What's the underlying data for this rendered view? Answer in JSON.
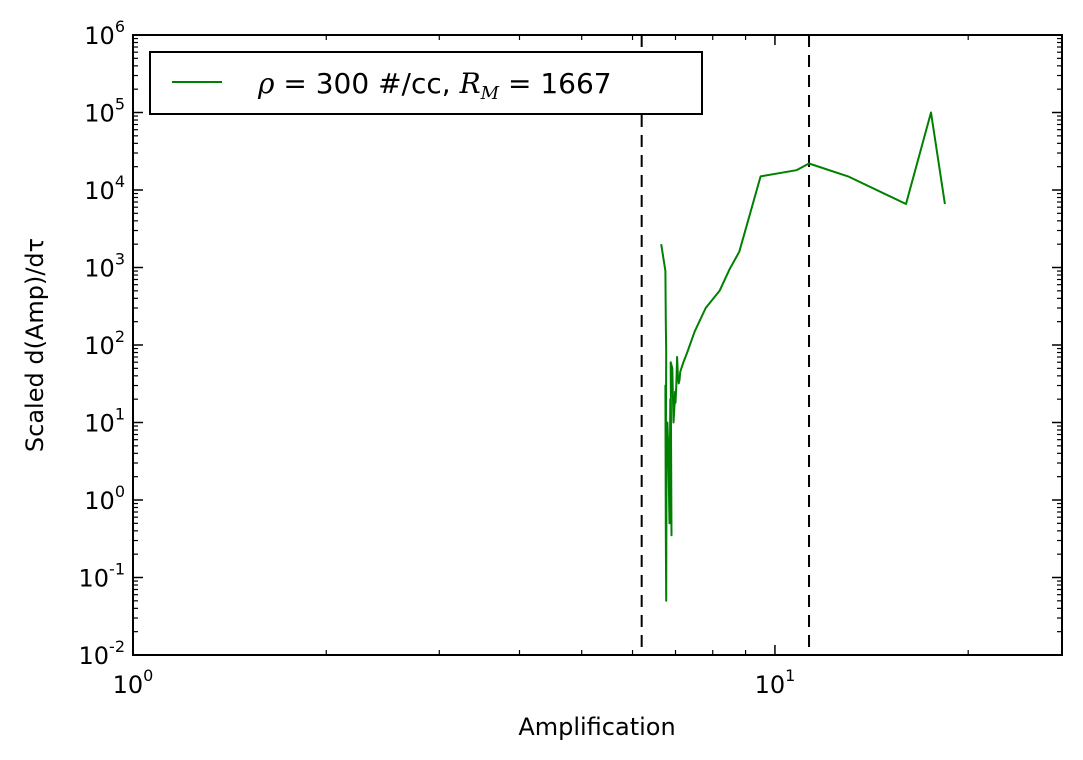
{
  "chart_data": {
    "type": "line",
    "xlabel": "Amplification",
    "ylabel": "Scaled d(Amp)/dτ",
    "x_scale": "log",
    "y_scale": "log",
    "xlim": [
      1,
      28
    ],
    "ylim": [
      0.01,
      1000000
    ],
    "grid": false,
    "legend_placement": "top-left",
    "x_ticks": [
      {
        "value": 1,
        "base": "10",
        "exp": "0"
      },
      {
        "value": 10,
        "base": "10",
        "exp": "1"
      }
    ],
    "y_ticks": [
      {
        "value": 0.01,
        "base": "10",
        "exp": "-2"
      },
      {
        "value": 0.1,
        "base": "10",
        "exp": "-1"
      },
      {
        "value": 1,
        "base": "10",
        "exp": "0"
      },
      {
        "value": 10,
        "base": "10",
        "exp": "1"
      },
      {
        "value": 100,
        "base": "10",
        "exp": "2"
      },
      {
        "value": 1000,
        "base": "10",
        "exp": "3"
      },
      {
        "value": 10000,
        "base": "10",
        "exp": "4"
      },
      {
        "value": 100000,
        "base": "10",
        "exp": "5"
      },
      {
        "value": 1000000,
        "base": "10",
        "exp": "6"
      }
    ],
    "reference_lines": [
      {
        "x": 6.2,
        "style": "dashed",
        "color": "#000000"
      },
      {
        "x": 11.3,
        "style": "dashed",
        "color": "#000000"
      }
    ],
    "series": [
      {
        "name_parts": {
          "rho_symbol": "ρ",
          "rho_text": " =  300 #/cc, ",
          "rm_symbol": "R",
          "rm_sub": "M",
          "rm_text": " = 1667"
        },
        "color": "#008000",
        "x": [
          6.65,
          6.75,
          6.76,
          6.77,
          6.76,
          6.75,
          6.76,
          6.77,
          6.78,
          6.8,
          6.82,
          6.85,
          6.87,
          6.9,
          6.88,
          6.92,
          6.95,
          6.97,
          6.99,
          7.0,
          7.02,
          7.04,
          7.06,
          7.08,
          7.1,
          7.12,
          7.15,
          7.2,
          7.3,
          7.5,
          7.8,
          8.2,
          8.5,
          8.8,
          9.5,
          10.8,
          11.3,
          13.0,
          16.0,
          17.5,
          18.4
        ],
        "y": [
          2000,
          900,
          200,
          80,
          3,
          30,
          0.4,
          0.05,
          8,
          10,
          5,
          0.5,
          20,
          0.35,
          60,
          50,
          10,
          15,
          25,
          18,
          30,
          70,
          40,
          32,
          35,
          45,
          50,
          60,
          80,
          150,
          300,
          500,
          950,
          1600,
          15000,
          18000,
          22000,
          15000,
          6600,
          100000,
          6600
        ],
        "y_order_note": ""
      }
    ]
  }
}
